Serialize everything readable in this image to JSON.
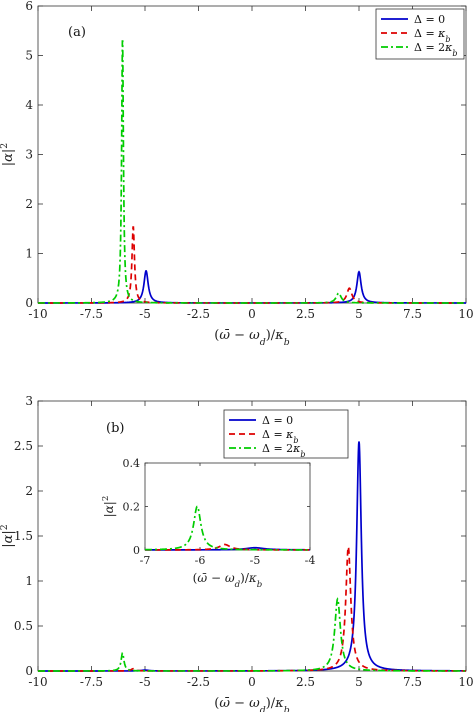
{
  "chart_data": [
    {
      "type": "line",
      "panel_label": "(a)",
      "xlabel": "(ω̄ − ω_d)/κ_b",
      "ylabel": "|α|²",
      "xlim": [
        -10,
        10
      ],
      "ylim": [
        0,
        6
      ],
      "xticks": [
        -10,
        -7.5,
        -5,
        -2.5,
        0,
        2.5,
        5,
        7.5,
        10
      ],
      "xtick_labels": [
        "-10",
        "-7.5",
        "-5",
        "-2.5",
        "0",
        "2.5",
        "5",
        "7.5",
        "10"
      ],
      "yticks": [
        0,
        1,
        2,
        3,
        4,
        5,
        6
      ],
      "ytick_labels": [
        "0",
        "1",
        "2",
        "3",
        "4",
        "5",
        "6"
      ],
      "grid": false,
      "legend_position": "top-right",
      "series": [
        {
          "name": "Δ = 0",
          "color": "#0000cc",
          "dash": "solid",
          "peaks": [
            {
              "x": -4.95,
              "height": 0.65,
              "width": 0.12
            },
            {
              "x": 5.0,
              "height": 0.63,
              "width": 0.12
            }
          ]
        },
        {
          "name": "Δ = κ_b",
          "color": "#dd0000",
          "dash": "dashed",
          "peaks": [
            {
              "x": -5.55,
              "height": 1.55,
              "width": 0.07
            },
            {
              "x": 4.55,
              "height": 0.3,
              "width": 0.14
            }
          ]
        },
        {
          "name": "Δ = 2κ_b",
          "color": "#00cc00",
          "dash": "dashdot",
          "peaks": [
            {
              "x": -6.05,
              "height": 5.4,
              "width": 0.05
            },
            {
              "x": 4.05,
              "height": 0.2,
              "width": 0.14
            }
          ]
        }
      ]
    },
    {
      "type": "line",
      "panel_label": "(b)",
      "xlabel": "(ω̄ − ω_d)/κ_b",
      "ylabel": "|α|²",
      "xlim": [
        -10,
        10
      ],
      "ylim": [
        0,
        3
      ],
      "xticks": [
        -10,
        -7.5,
        -5,
        -2.5,
        0,
        2.5,
        5,
        7.5,
        10
      ],
      "xtick_labels": [
        "-10",
        "-7.5",
        "-5",
        "-2.5",
        "0",
        "2.5",
        "5",
        "7.5",
        "10"
      ],
      "yticks": [
        0,
        0.5,
        1,
        1.5,
        2,
        2.5,
        3
      ],
      "ytick_labels": [
        "0",
        "0.5",
        "1",
        "1.5",
        "2",
        "2.5",
        "3"
      ],
      "grid": false,
      "legend_position": "top-center",
      "series": [
        {
          "name": "Δ = 0",
          "color": "#0000cc",
          "dash": "solid",
          "peaks": [
            {
              "x": -5.0,
              "height": 0.01,
              "width": 0.2
            },
            {
              "x": 5.0,
              "height": 2.55,
              "width": 0.13
            }
          ]
        },
        {
          "name": "Δ = κ_b",
          "color": "#dd0000",
          "dash": "dashed",
          "peaks": [
            {
              "x": -5.55,
              "height": 0.025,
              "width": 0.12
            },
            {
              "x": 4.5,
              "height": 1.38,
              "width": 0.14
            }
          ]
        },
        {
          "name": "Δ = 2κ_b",
          "color": "#00cc00",
          "dash": "dashdot",
          "peaks": [
            {
              "x": -6.05,
              "height": 0.2,
              "width": 0.08
            },
            {
              "x": 4.0,
              "height": 0.8,
              "width": 0.16
            }
          ]
        }
      ],
      "inset": {
        "xlabel": "(ω̄ − ω_d)/κ_b",
        "ylabel": "|α|²",
        "xlim": [
          -7,
          -4
        ],
        "ylim": [
          0,
          0.4
        ],
        "xticks": [
          -7,
          -6,
          -5,
          -4
        ],
        "xtick_labels": [
          "-7",
          "-6",
          "-5",
          "-4"
        ],
        "yticks": [
          0,
          0.2,
          0.4
        ],
        "ytick_labels": [
          "0",
          "0.2",
          "0.4"
        ]
      }
    }
  ]
}
